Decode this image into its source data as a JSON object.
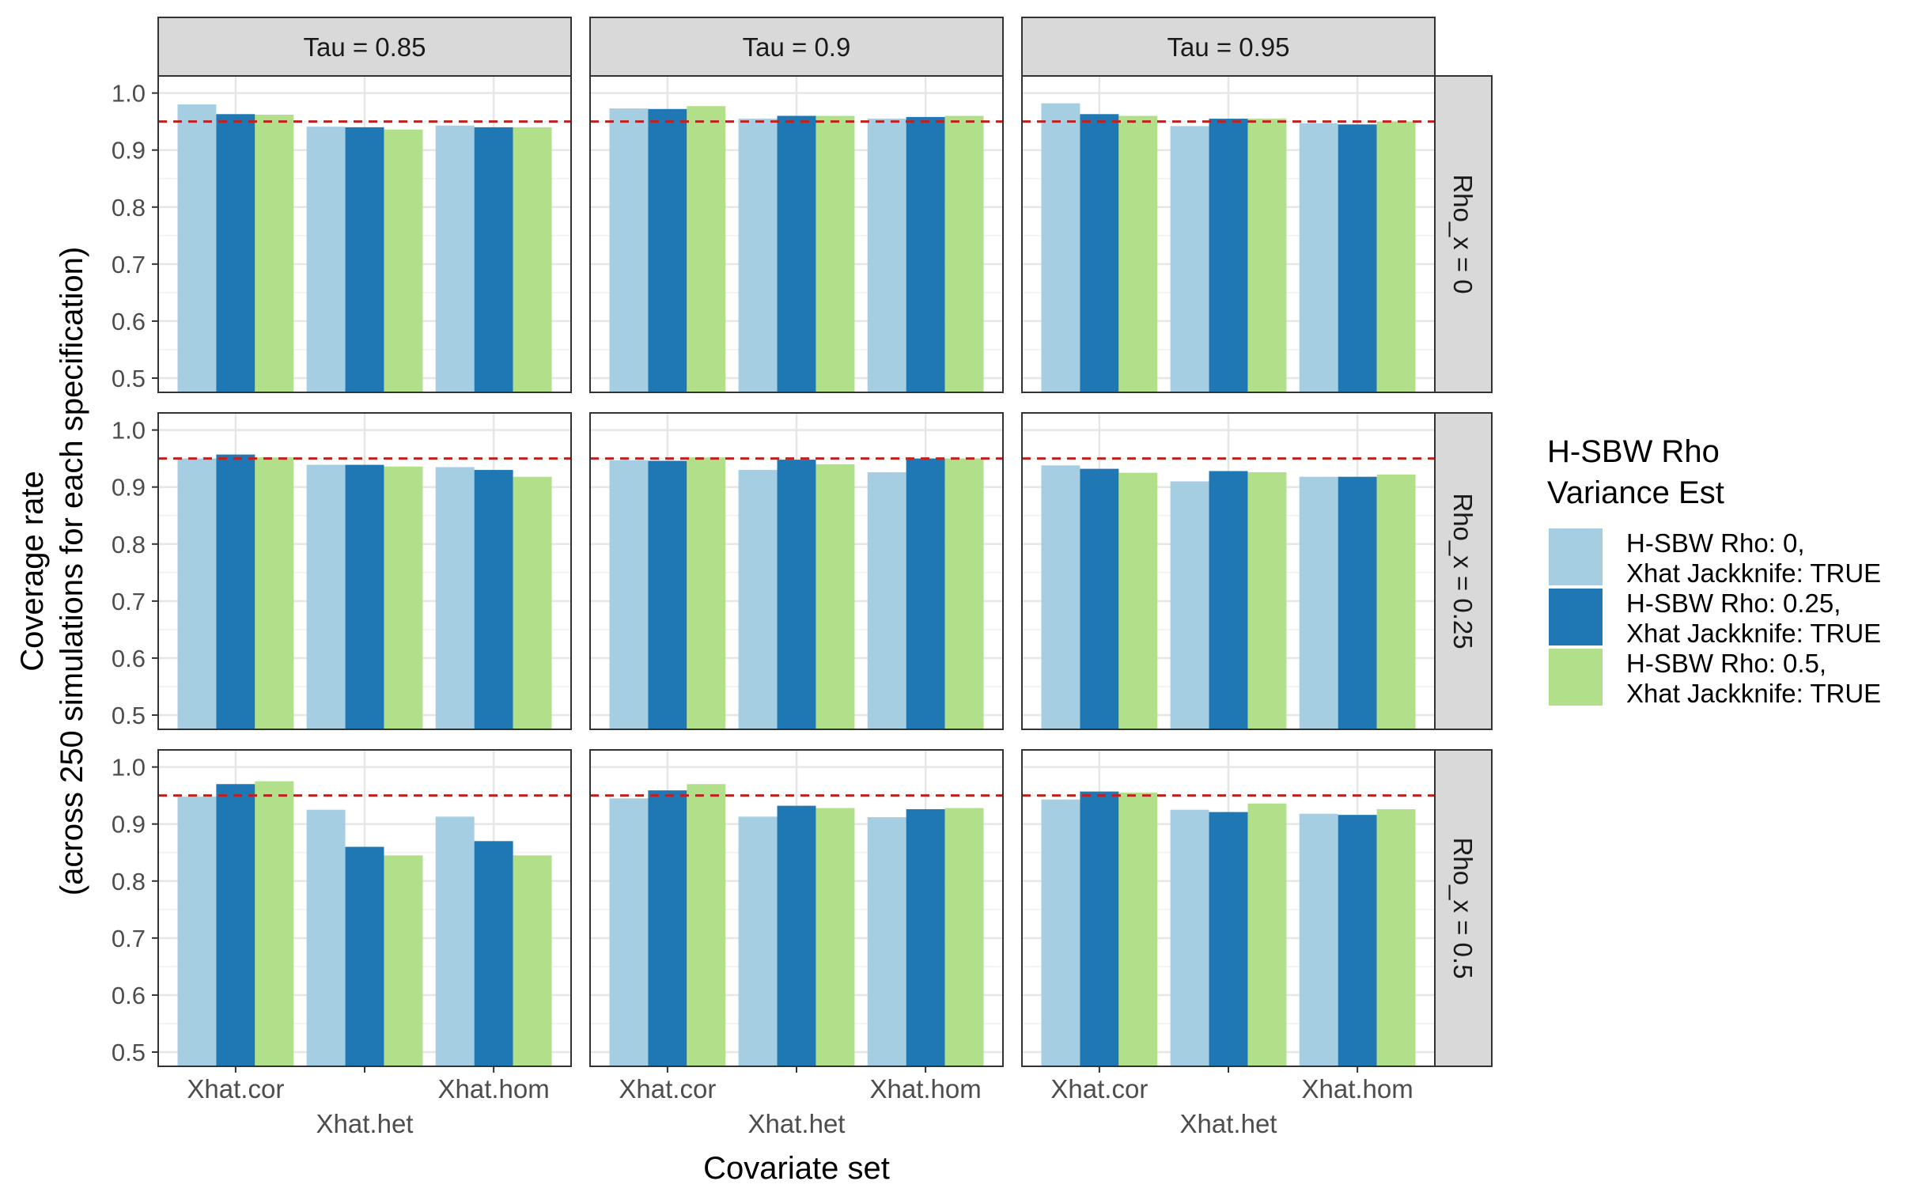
{
  "chart_data": {
    "type": "bar",
    "facet_columns": [
      "Tau = 0.85",
      "Tau = 0.9",
      "Tau = 0.95"
    ],
    "facet_rows": [
      "Rho_x = 0",
      "Rho_x = 0.25",
      "Rho_x = 0.5"
    ],
    "categories": [
      "Xhat.cor",
      "Xhat.het",
      "Xhat.hom"
    ],
    "xlabel": "Covariate set",
    "ylabel_line1": "Coverage rate",
    "ylabel_line2": "(across 250 simulations for each specification)",
    "ylim": [
      0.475,
      1.03
    ],
    "yticks": [
      "0.5",
      "0.6",
      "0.7",
      "0.8",
      "0.9",
      "1.0"
    ],
    "reference_line": 0.95,
    "reference_color": "#c0201f",
    "grid": true,
    "legend": {
      "title_line1": "H-SBW Rho",
      "title_line2": "Variance Est",
      "position": "right",
      "entries": [
        {
          "line1": "H-SBW Rho: 0,",
          "line2": "Xhat Jackknife: TRUE",
          "color": "#a6cee3"
        },
        {
          "line1": "H-SBW Rho: 0.25,",
          "line2": "Xhat Jackknife: TRUE",
          "color": "#1f78b4"
        },
        {
          "line1": "H-SBW Rho: 0.5,",
          "line2": "Xhat Jackknife: TRUE",
          "color": "#b2df8a"
        }
      ]
    },
    "panels": [
      [
        [
          [
            0.98,
            0.963,
            0.962
          ],
          [
            0.941,
            0.94,
            0.936
          ],
          [
            0.943,
            0.94,
            0.94
          ]
        ],
        [
          [
            0.973,
            0.972,
            0.977
          ],
          [
            0.955,
            0.96,
            0.96
          ],
          [
            0.955,
            0.958,
            0.96
          ]
        ],
        [
          [
            0.982,
            0.963,
            0.96
          ],
          [
            0.942,
            0.955,
            0.955
          ],
          [
            0.947,
            0.945,
            0.95
          ]
        ]
      ],
      [
        [
          [
            0.95,
            0.957,
            0.952
          ],
          [
            0.939,
            0.939,
            0.936
          ],
          [
            0.935,
            0.93,
            0.918
          ]
        ],
        [
          [
            0.947,
            0.946,
            0.952
          ],
          [
            0.93,
            0.948,
            0.94
          ],
          [
            0.926,
            0.95,
            0.95
          ]
        ],
        [
          [
            0.938,
            0.932,
            0.925
          ],
          [
            0.91,
            0.928,
            0.926
          ],
          [
            0.918,
            0.918,
            0.922
          ]
        ]
      ],
      [
        [
          [
            0.948,
            0.97,
            0.975
          ],
          [
            0.925,
            0.86,
            0.845
          ],
          [
            0.913,
            0.87,
            0.845
          ]
        ],
        [
          [
            0.945,
            0.959,
            0.97
          ],
          [
            0.913,
            0.932,
            0.928
          ],
          [
            0.912,
            0.926,
            0.928
          ]
        ],
        [
          [
            0.943,
            0.957,
            0.955
          ],
          [
            0.925,
            0.921,
            0.936
          ],
          [
            0.918,
            0.916,
            0.926
          ]
        ]
      ]
    ]
  }
}
